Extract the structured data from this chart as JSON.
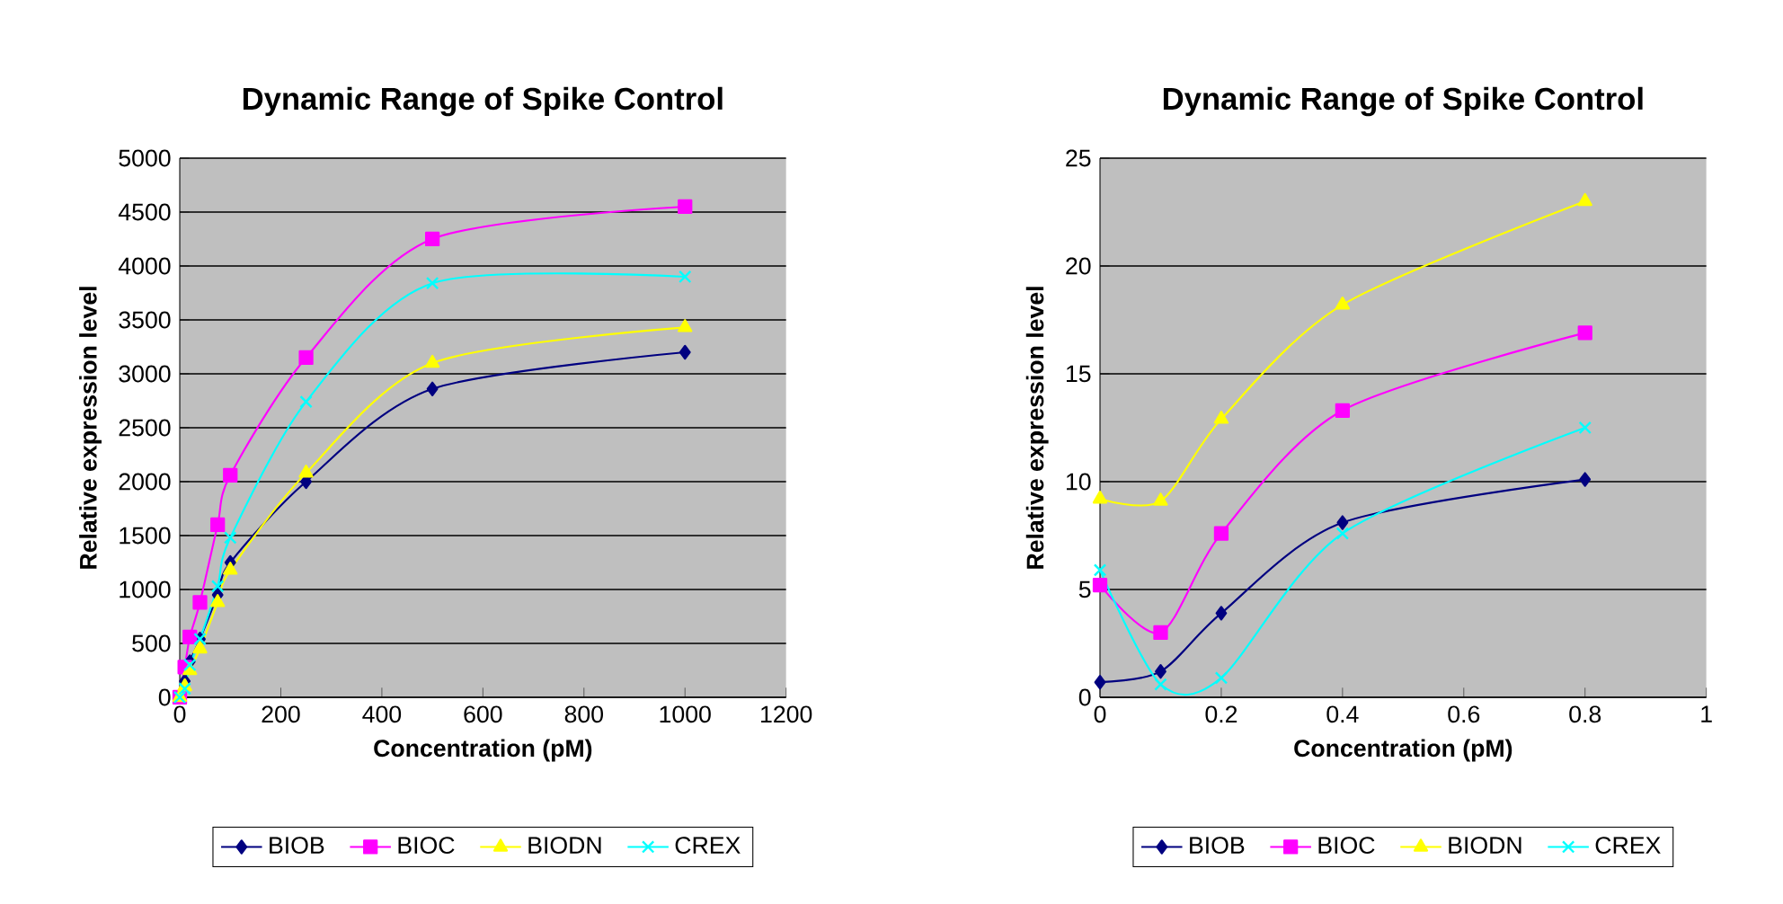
{
  "chart_data": [
    {
      "type": "line",
      "title": "Dynamic Range of Spike Control",
      "xlabel": "Concentration (pM)",
      "ylabel": "Relative expression level",
      "x": [
        0,
        10,
        20,
        40,
        75,
        100,
        250,
        500,
        1000
      ],
      "xlim": [
        0,
        1200
      ],
      "xticks": [
        0,
        200,
        400,
        600,
        800,
        1000,
        1200
      ],
      "ylim": [
        0,
        5000
      ],
      "yticks": [
        0,
        500,
        1000,
        1500,
        2000,
        2500,
        3000,
        3500,
        4000,
        4500,
        5000
      ],
      "grid": "y",
      "legend": "bottom",
      "series": [
        {
          "name": "BIOB",
          "color": "#000080",
          "marker": "diamond",
          "values": [
            0,
            150,
            330,
            540,
            950,
            1250,
            2000,
            2860,
            3200
          ]
        },
        {
          "name": "BIOC",
          "color": "#ff00ff",
          "marker": "square",
          "values": [
            0,
            280,
            560,
            880,
            1600,
            2060,
            3150,
            4250,
            4550
          ]
        },
        {
          "name": "BIODN",
          "color": "#ffff00",
          "marker": "triangle",
          "values": [
            0,
            100,
            250,
            450,
            880,
            1180,
            2080,
            3100,
            3430
          ]
        },
        {
          "name": "CREX",
          "color": "#00ffff",
          "marker": "cross",
          "values": [
            0,
            80,
            300,
            540,
            1030,
            1480,
            2740,
            3840,
            3900
          ]
        }
      ]
    },
    {
      "type": "line",
      "title": "Dynamic Range of Spike Control",
      "xlabel": "Concentration (pM)",
      "ylabel": "Relative expression level",
      "x": [
        0,
        0.1,
        0.2,
        0.4,
        0.8
      ],
      "xlim": [
        0,
        1
      ],
      "xticks": [
        0,
        0.2,
        0.4,
        0.6,
        0.8,
        1
      ],
      "ylim": [
        0,
        25
      ],
      "yticks": [
        0,
        5,
        10,
        15,
        20,
        25
      ],
      "grid": "y",
      "legend": "bottom",
      "series": [
        {
          "name": "BIOB",
          "color": "#000080",
          "marker": "diamond",
          "values": [
            0.7,
            1.2,
            3.9,
            8.1,
            10.1
          ]
        },
        {
          "name": "BIOC",
          "color": "#ff00ff",
          "marker": "square",
          "values": [
            5.2,
            3.0,
            7.6,
            13.3,
            16.9
          ]
        },
        {
          "name": "BIODN",
          "color": "#ffff00",
          "marker": "triangle",
          "values": [
            9.2,
            9.1,
            12.9,
            18.2,
            23.0
          ]
        },
        {
          "name": "CREX",
          "color": "#00ffff",
          "marker": "cross",
          "values": [
            5.9,
            0.6,
            0.9,
            7.6,
            12.5
          ]
        }
      ]
    }
  ]
}
